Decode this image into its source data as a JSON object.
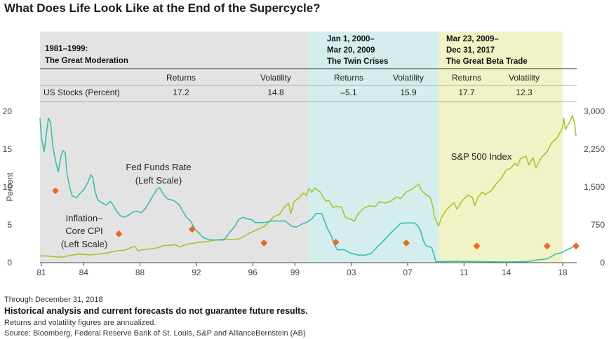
{
  "title": "What Does Life Look Like at the End of the Supercycle?",
  "periods": [
    {
      "title_lines": [
        "1981–1999:",
        "The Great Moderation"
      ],
      "returns": "17.2",
      "volatility": "14.8",
      "color": "#e3e3e3"
    },
    {
      "title_lines": [
        "Jan 1, 2000–",
        "Mar 20, 2009",
        "The Twin Crises"
      ],
      "returns": "–5.1",
      "volatility": "15.9",
      "color": "#d3eeec"
    },
    {
      "title_lines": [
        "Mar 23, 2009–",
        "Dec 31, 2017",
        "The Great Beta Trade"
      ],
      "returns": "17.7",
      "volatility": "12.3",
      "color": "#f0f3c6"
    }
  ],
  "table": {
    "returns_label": "Returns",
    "volatility_label": "Volatility",
    "row_label": "US Stocks (Percent)"
  },
  "labels": {
    "fed_funds": [
      "Fed Funds Rate",
      "(Left Scale)"
    ],
    "inflation": [
      "Inflation–",
      "Core CPI",
      "(Left Scale)"
    ],
    "sp500": "S&P 500 Index",
    "left_axis": "Percent"
  },
  "footer": {
    "through": "Through December 31, 2018",
    "disclaimer": "Historical analysis and current forecasts do not guarantee future results.",
    "note": "Returns and volatility figures are annualized.",
    "source": "Source: Bloomberg, Federal Reserve Bank of St. Louis, S&P and AllianceBernstein (AB)"
  },
  "colors": {
    "fed_funds": "#3dbdb0",
    "sp500": "#a5c531",
    "cpi": "#e66a1f"
  },
  "chart_data": {
    "type": "line",
    "x_ticks": [
      "81",
      "84",
      "88",
      "92",
      "96",
      "99",
      "03",
      "07",
      "11",
      "14",
      "18"
    ],
    "x_tick_years": [
      1981,
      1984,
      1988,
      1992,
      1996,
      1999,
      2003,
      2007,
      2011,
      2014,
      2018
    ],
    "xlim": [
      1980.9,
      2019.0
    ],
    "y_left_ticks": [
      "0",
      "5",
      "10",
      "15",
      "20"
    ],
    "y_left_lim": [
      0,
      20
    ],
    "y_right_ticks": [
      "0",
      "750",
      "1,500",
      "2,250",
      "3,000"
    ],
    "y_right_lim": [
      0,
      3000
    ],
    "period_bounds": [
      [
        1980.9,
        2000.0
      ],
      [
        2000.0,
        2009.2
      ],
      [
        2009.2,
        2017.99
      ]
    ],
    "series": [
      {
        "name": "Fed Funds Rate",
        "axis": "left",
        "points": [
          [
            1980.9,
            19.1
          ],
          [
            1981.0,
            16.5
          ],
          [
            1981.2,
            14.7
          ],
          [
            1981.35,
            17.0
          ],
          [
            1981.5,
            19.1
          ],
          [
            1981.65,
            18.5
          ],
          [
            1981.8,
            15.5
          ],
          [
            1982.0,
            13.5
          ],
          [
            1982.2,
            12.0
          ],
          [
            1982.4,
            14.2
          ],
          [
            1982.55,
            14.8
          ],
          [
            1982.7,
            14.5
          ],
          [
            1982.8,
            12.0
          ],
          [
            1983.0,
            10.0
          ],
          [
            1983.2,
            8.8
          ],
          [
            1983.5,
            8.6
          ],
          [
            1983.8,
            9.3
          ],
          [
            1984.0,
            9.6
          ],
          [
            1984.3,
            10.6
          ],
          [
            1984.5,
            11.6
          ],
          [
            1984.65,
            11.3
          ],
          [
            1984.8,
            9.5
          ],
          [
            1985.0,
            8.3
          ],
          [
            1985.3,
            7.9
          ],
          [
            1985.6,
            7.6
          ],
          [
            1985.9,
            8.1
          ],
          [
            1986.1,
            7.6
          ],
          [
            1986.3,
            6.9
          ],
          [
            1986.6,
            6.2
          ],
          [
            1986.9,
            6.0
          ],
          [
            1987.2,
            6.3
          ],
          [
            1987.5,
            6.7
          ],
          [
            1987.8,
            6.8
          ],
          [
            1988.1,
            6.6
          ],
          [
            1988.4,
            7.2
          ],
          [
            1988.7,
            8.1
          ],
          [
            1988.9,
            8.8
          ],
          [
            1989.2,
            9.7
          ],
          [
            1989.4,
            9.9
          ],
          [
            1989.7,
            8.9
          ],
          [
            1990.0,
            8.4
          ],
          [
            1990.4,
            8.2
          ],
          [
            1990.8,
            7.6
          ],
          [
            1991.0,
            6.9
          ],
          [
            1991.3,
            6.0
          ],
          [
            1991.6,
            5.5
          ],
          [
            1991.9,
            4.4
          ],
          [
            1992.2,
            3.9
          ],
          [
            1992.5,
            3.3
          ],
          [
            1992.8,
            3.1
          ],
          [
            1993.0,
            3.0
          ],
          [
            1993.5,
            3.0
          ],
          [
            1993.9,
            3.0
          ],
          [
            1994.1,
            3.3
          ],
          [
            1994.4,
            4.1
          ],
          [
            1994.7,
            4.7
          ],
          [
            1995.0,
            5.7
          ],
          [
            1995.3,
            6.0
          ],
          [
            1995.6,
            5.8
          ],
          [
            1995.9,
            5.7
          ],
          [
            1996.2,
            5.3
          ],
          [
            1996.8,
            5.3
          ],
          [
            1997.3,
            5.5
          ],
          [
            1997.8,
            5.5
          ],
          [
            1998.3,
            5.5
          ],
          [
            1998.8,
            4.8
          ],
          [
            1999.1,
            4.7
          ],
          [
            1999.5,
            5.1
          ],
          [
            1999.9,
            5.4
          ],
          [
            2000.2,
            5.8
          ],
          [
            2000.5,
            6.5
          ],
          [
            2000.9,
            6.5
          ],
          [
            2001.1,
            5.5
          ],
          [
            2001.3,
            4.5
          ],
          [
            2001.6,
            3.5
          ],
          [
            2001.8,
            2.4
          ],
          [
            2002.0,
            1.7
          ],
          [
            2002.5,
            1.7
          ],
          [
            2002.9,
            1.3
          ],
          [
            2003.5,
            1.0
          ],
          [
            2004.0,
            1.0
          ],
          [
            2004.4,
            1.2
          ],
          [
            2004.8,
            2.0
          ],
          [
            2005.2,
            2.7
          ],
          [
            2005.6,
            3.5
          ],
          [
            2005.9,
            4.1
          ],
          [
            2006.2,
            4.6
          ],
          [
            2006.5,
            5.2
          ],
          [
            2007.0,
            5.25
          ],
          [
            2007.5,
            5.25
          ],
          [
            2007.7,
            4.9
          ],
          [
            2007.9,
            4.3
          ],
          [
            2008.1,
            3.0
          ],
          [
            2008.3,
            2.2
          ],
          [
            2008.7,
            2.0
          ],
          [
            2008.9,
            0.8
          ],
          [
            2009.0,
            0.15
          ],
          [
            2009.5,
            0.15
          ],
          [
            2010.5,
            0.18
          ],
          [
            2012.0,
            0.14
          ],
          [
            2014.0,
            0.09
          ],
          [
            2015.5,
            0.13
          ],
          [
            2015.95,
            0.3
          ],
          [
            2016.3,
            0.38
          ],
          [
            2016.9,
            0.5
          ],
          [
            2017.2,
            0.8
          ],
          [
            2017.5,
            1.15
          ],
          [
            2017.9,
            1.3
          ],
          [
            2018.2,
            1.6
          ],
          [
            2018.6,
            1.95
          ],
          [
            2018.95,
            2.35
          ]
        ]
      },
      {
        "name": "S&P 500 Index",
        "axis": "right",
        "points": [
          [
            1980.9,
            135
          ],
          [
            1981.5,
            130
          ],
          [
            1982.0,
            115
          ],
          [
            1982.6,
            112
          ],
          [
            1982.9,
            138
          ],
          [
            1983.3,
            155
          ],
          [
            1983.6,
            168
          ],
          [
            1984.0,
            162
          ],
          [
            1984.5,
            155
          ],
          [
            1984.9,
            166
          ],
          [
            1985.4,
            182
          ],
          [
            1985.9,
            206
          ],
          [
            1986.2,
            228
          ],
          [
            1986.6,
            245
          ],
          [
            1986.9,
            245
          ],
          [
            1987.3,
            292
          ],
          [
            1987.65,
            325
          ],
          [
            1987.85,
            235
          ],
          [
            1988.2,
            258
          ],
          [
            1988.6,
            268
          ],
          [
            1988.9,
            276
          ],
          [
            1989.3,
            300
          ],
          [
            1989.7,
            345
          ],
          [
            1990.0,
            340
          ],
          [
            1990.5,
            358
          ],
          [
            1990.8,
            310
          ],
          [
            1991.1,
            340
          ],
          [
            1991.5,
            375
          ],
          [
            1991.9,
            390
          ],
          [
            1992.3,
            405
          ],
          [
            1992.7,
            415
          ],
          [
            1993.0,
            435
          ],
          [
            1993.5,
            450
          ],
          [
            1993.9,
            464
          ],
          [
            1994.3,
            455
          ],
          [
            1994.7,
            460
          ],
          [
            1995.0,
            470
          ],
          [
            1995.4,
            520
          ],
          [
            1995.8,
            590
          ],
          [
            1996.0,
            615
          ],
          [
            1996.4,
            665
          ],
          [
            1996.8,
            715
          ],
          [
            1997.1,
            790
          ],
          [
            1997.5,
            915
          ],
          [
            1997.9,
            955
          ],
          [
            1998.2,
            1090
          ],
          [
            1998.55,
            1175
          ],
          [
            1998.7,
            970
          ],
          [
            1998.95,
            1210
          ],
          [
            1999.3,
            1290
          ],
          [
            1999.6,
            1380
          ],
          [
            1999.8,
            1330
          ],
          [
            2000.0,
            1470
          ],
          [
            2000.2,
            1400
          ],
          [
            2000.4,
            1480
          ],
          [
            2000.6,
            1440
          ],
          [
            2000.8,
            1400
          ],
          [
            2000.95,
            1320
          ],
          [
            2001.2,
            1220
          ],
          [
            2001.4,
            1240
          ],
          [
            2001.7,
            1090
          ],
          [
            2001.9,
            1120
          ],
          [
            2002.3,
            1100
          ],
          [
            2002.55,
            910
          ],
          [
            2002.8,
            870
          ],
          [
            2003.0,
            860
          ],
          [
            2003.2,
            815
          ],
          [
            2003.5,
            975
          ],
          [
            2003.9,
            1080
          ],
          [
            2004.3,
            1130
          ],
          [
            2004.7,
            1110
          ],
          [
            2004.99,
            1210
          ],
          [
            2005.4,
            1180
          ],
          [
            2005.8,
            1220
          ],
          [
            2006.2,
            1300
          ],
          [
            2006.5,
            1270
          ],
          [
            2006.9,
            1400
          ],
          [
            2007.3,
            1460
          ],
          [
            2007.6,
            1520
          ],
          [
            2007.8,
            1560
          ],
          [
            2008.0,
            1420
          ],
          [
            2008.3,
            1350
          ],
          [
            2008.6,
            1290
          ],
          [
            2008.8,
            1100
          ],
          [
            2008.9,
            900
          ],
          [
            2009.2,
            730
          ],
          [
            2009.4,
            890
          ],
          [
            2009.7,
            1030
          ],
          [
            2010.0,
            1120
          ],
          [
            2010.3,
            1190
          ],
          [
            2010.5,
            1060
          ],
          [
            2010.9,
            1240
          ],
          [
            2011.3,
            1340
          ],
          [
            2011.6,
            1290
          ],
          [
            2011.75,
            1130
          ],
          [
            2012.0,
            1300
          ],
          [
            2012.3,
            1400
          ],
          [
            2012.5,
            1350
          ],
          [
            2012.9,
            1420
          ],
          [
            2013.3,
            1570
          ],
          [
            2013.7,
            1690
          ],
          [
            2013.99,
            1840
          ],
          [
            2014.3,
            1870
          ],
          [
            2014.6,
            1970
          ],
          [
            2014.8,
            1920
          ],
          [
            2015.0,
            2060
          ],
          [
            2015.4,
            2110
          ],
          [
            2015.6,
            1940
          ],
          [
            2015.9,
            2080
          ],
          [
            2016.1,
            1880
          ],
          [
            2016.5,
            2090
          ],
          [
            2016.9,
            2200
          ],
          [
            2017.2,
            2370
          ],
          [
            2017.6,
            2470
          ],
          [
            2017.99,
            2670
          ],
          [
            2018.08,
            2870
          ],
          [
            2018.2,
            2640
          ],
          [
            2018.5,
            2790
          ],
          [
            2018.7,
            2920
          ],
          [
            2018.85,
            2760
          ],
          [
            2018.95,
            2510
          ]
        ]
      },
      {
        "name": "Inflation–Core CPI",
        "axis": "left",
        "points": [
          [
            1982.0,
            9.5
          ],
          [
            1986.5,
            3.8
          ],
          [
            1991.7,
            4.4
          ],
          [
            1996.8,
            2.6
          ],
          [
            2001.9,
            2.7
          ],
          [
            2006.9,
            2.6
          ],
          [
            2011.9,
            2.2
          ],
          [
            2016.9,
            2.2
          ],
          [
            2018.95,
            2.2
          ]
        ]
      }
    ]
  }
}
